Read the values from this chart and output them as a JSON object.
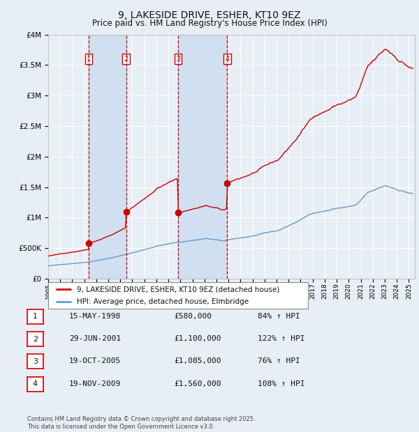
{
  "title": "9, LAKESIDE DRIVE, ESHER, KT10 9EZ",
  "subtitle": "Price paid vs. HM Land Registry's House Price Index (HPI)",
  "title_fontsize": 10,
  "subtitle_fontsize": 8.5,
  "ylim": [
    0,
    4000000
  ],
  "yticks": [
    0,
    500000,
    1000000,
    1500000,
    2000000,
    2500000,
    3000000,
    3500000,
    4000000
  ],
  "ytick_labels": [
    "£0",
    "£500K",
    "£1M",
    "£1.5M",
    "£2M",
    "£2.5M",
    "£3M",
    "£3.5M",
    "£4M"
  ],
  "fig_bg_color": "#e8eef5",
  "plot_bg_color": "#e8eef5",
  "grid_color": "#ffffff",
  "red_line_color": "#cc0000",
  "blue_line_color": "#6699cc",
  "sale_marker_color": "#cc0000",
  "dashed_line_color": "#cc0000",
  "shade_color": "#d0e0f0",
  "purchases": [
    {
      "date_num": 1998.37,
      "price": 580000,
      "label": "1"
    },
    {
      "date_num": 2001.49,
      "price": 1100000,
      "label": "2"
    },
    {
      "date_num": 2005.8,
      "price": 1085000,
      "label": "3"
    },
    {
      "date_num": 2009.89,
      "price": 1560000,
      "label": "4"
    }
  ],
  "legend_entries": [
    "9, LAKESIDE DRIVE, ESHER, KT10 9EZ (detached house)",
    "HPI: Average price, detached house, Elmbridge"
  ],
  "table_rows": [
    {
      "num": "1",
      "date": "15-MAY-1998",
      "price": "£580,000",
      "pct": "84% ↑ HPI"
    },
    {
      "num": "2",
      "date": "29-JUN-2001",
      "price": "£1,100,000",
      "pct": "122% ↑ HPI"
    },
    {
      "num": "3",
      "date": "19-OCT-2005",
      "price": "£1,085,000",
      "pct": "76% ↑ HPI"
    },
    {
      "num": "4",
      "date": "19-NOV-2009",
      "price": "£1,560,000",
      "pct": "108% ↑ HPI"
    }
  ],
  "footnote": "Contains HM Land Registry data © Crown copyright and database right 2025.\nThis data is licensed under the Open Government Licence v3.0."
}
